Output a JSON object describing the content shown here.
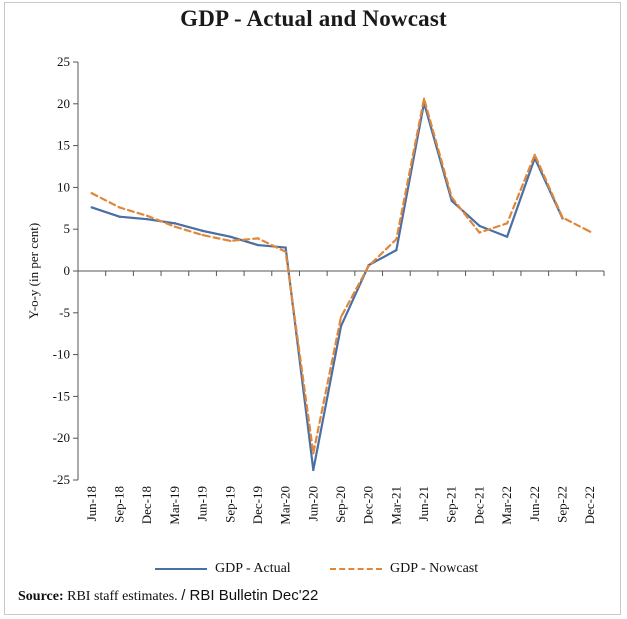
{
  "chart_data": {
    "type": "line",
    "title": "GDP - Actual and Nowcast",
    "ylabel": "Y-o-y (in per cent)",
    "xlabel": "",
    "ylim": [
      -25,
      25
    ],
    "yticks": [
      25,
      20,
      15,
      10,
      5,
      0,
      -5,
      -10,
      -15,
      -20,
      -25
    ],
    "categories": [
      "Jun-18",
      "Sep-18",
      "Dec-18",
      "Mar-19",
      "Jun-19",
      "Sep-19",
      "Dec-19",
      "Mar-20",
      "Jun-20",
      "Sep-20",
      "Dec-20",
      "Mar-21",
      "Jun-21",
      "Sep-21",
      "Dec-21",
      "Mar-22",
      "Jun-22",
      "Sep-22",
      "Dec-22"
    ],
    "series": [
      {
        "name": "GDP - Actual",
        "color": "#4a6fa5",
        "style": "solid",
        "values": [
          7.6,
          6.5,
          6.2,
          5.7,
          4.8,
          4.1,
          3.1,
          2.8,
          -23.8,
          -6.6,
          0.7,
          2.5,
          20.1,
          8.4,
          5.4,
          4.1,
          13.5,
          6.3,
          null
        ]
      },
      {
        "name": "GDP - Nowcast",
        "color": "#e0873a",
        "style": "dashed",
        "values": [
          9.3,
          7.6,
          6.6,
          5.3,
          4.3,
          3.6,
          3.9,
          2.3,
          -21.8,
          -5.5,
          0.6,
          3.8,
          20.6,
          8.8,
          4.6,
          5.7,
          13.9,
          6.4,
          4.7
        ]
      }
    ],
    "grid": false,
    "legend_position": "bottom"
  },
  "source": {
    "label": "Source:",
    "text": "RBI staff estimates.",
    "extra": "/ RBI Bulletin Dec'22"
  }
}
